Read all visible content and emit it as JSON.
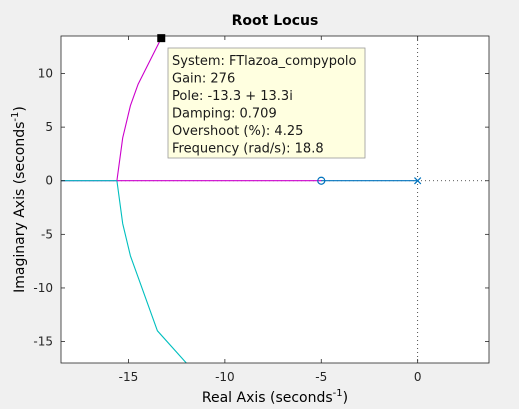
{
  "chart_data": {
    "type": "line",
    "title": "Root Locus",
    "xlabel": "Real Axis (seconds",
    "ylabel": "Imaginary Axis (seconds",
    "unit_exponent": "-1",
    "xlim": [
      -18.5,
      3.7
    ],
    "ylim": [
      -17,
      13.5
    ],
    "xticks": [
      -15,
      -10,
      -5,
      0
    ],
    "yticks": [
      -15,
      -10,
      -5,
      0,
      5,
      10
    ],
    "grid": false,
    "series": [
      {
        "color": "#cc00cc",
        "points": [
          [
            -18.5,
            0
          ],
          [
            -15.6,
            0
          ],
          [
            -15.3,
            4
          ],
          [
            -14.9,
            7
          ],
          [
            -14.5,
            9
          ],
          [
            -13.3,
            13.3
          ]
        ]
      },
      {
        "color": "#00bfbf",
        "points": [
          [
            -18.5,
            0
          ],
          [
            -15.6,
            0
          ],
          [
            -15.3,
            -4
          ],
          [
            -14.9,
            -7
          ],
          [
            -14.5,
            -9
          ],
          [
            -13.5,
            -14
          ],
          [
            -12.0,
            -17
          ]
        ]
      },
      {
        "color": "#cc00cc",
        "points": [
          [
            -15.6,
            0
          ],
          [
            -5,
            0
          ]
        ]
      },
      {
        "color": "#0072bd",
        "points": [
          [
            -5,
            0
          ],
          [
            0,
            0
          ]
        ]
      }
    ],
    "open_loop_zeros": [
      [
        -5,
        0
      ]
    ],
    "open_loop_poles": [
      [
        0,
        0
      ]
    ],
    "datatip": {
      "x": -13.3,
      "y": 13.3,
      "lines": [
        "System: FTlazoa_compypolo",
        "Gain: 276",
        "Pole: -13.3 + 13.3i",
        "Damping: 0.709",
        "Overshoot (%): 4.25",
        "Frequency (rad/s): 18.8"
      ]
    }
  }
}
